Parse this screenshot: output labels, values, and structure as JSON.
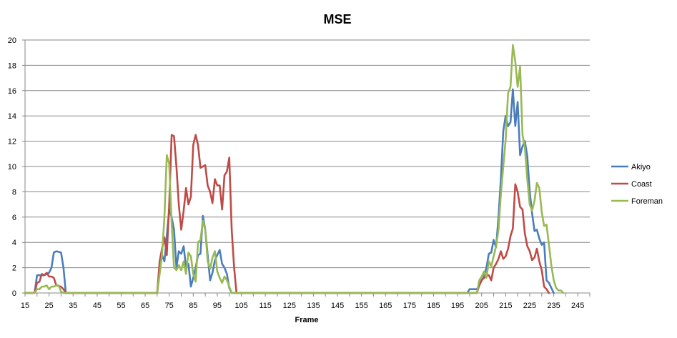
{
  "chart_data": {
    "type": "line",
    "title": "MSE",
    "xlabel": "Frame",
    "ylabel": "",
    "xlim": [
      15,
      250
    ],
    "ylim": [
      0,
      20
    ],
    "x_ticks": [
      15,
      25,
      35,
      45,
      55,
      65,
      75,
      85,
      95,
      105,
      115,
      125,
      135,
      145,
      155,
      165,
      175,
      185,
      195,
      205,
      215,
      225,
      235,
      245
    ],
    "y_ticks": [
      0,
      2,
      4,
      6,
      8,
      10,
      12,
      14,
      16,
      18,
      20
    ],
    "grid": "horizontal",
    "legend_position": "right",
    "series": [
      {
        "name": "Akiyo",
        "color": "#4a7ebb",
        "points": [
          [
            15,
            0
          ],
          [
            19,
            0
          ],
          [
            20,
            1.4
          ],
          [
            23,
            1.4
          ],
          [
            25,
            1.6
          ],
          [
            26,
            2
          ],
          [
            27,
            3.2
          ],
          [
            28,
            3.3
          ],
          [
            30,
            3.2
          ],
          [
            31,
            2
          ],
          [
            32,
            0
          ],
          [
            70,
            0
          ],
          [
            71,
            2
          ],
          [
            72,
            3
          ],
          [
            73,
            2.5
          ],
          [
            74,
            4.5
          ],
          [
            75,
            6.6
          ],
          [
            76,
            6
          ],
          [
            77,
            5
          ],
          [
            78,
            2
          ],
          [
            79,
            3.3
          ],
          [
            80,
            3.1
          ],
          [
            81,
            3.7
          ],
          [
            82,
            2
          ],
          [
            83,
            2.3
          ],
          [
            84,
            0.5
          ],
          [
            85,
            1.2
          ],
          [
            86,
            2
          ],
          [
            87,
            3
          ],
          [
            88,
            3.1
          ],
          [
            89,
            6.1
          ],
          [
            90,
            5
          ],
          [
            91,
            3
          ],
          [
            92,
            1
          ],
          [
            93,
            1.6
          ],
          [
            94,
            2.6
          ],
          [
            95,
            3
          ],
          [
            96,
            3.4
          ],
          [
            97,
            2.3
          ],
          [
            98,
            2
          ],
          [
            99,
            1.5
          ],
          [
            100,
            0.4
          ],
          [
            101,
            0
          ],
          [
            199,
            0
          ],
          [
            200,
            0.3
          ],
          [
            201,
            0.3
          ],
          [
            203,
            0.3
          ],
          [
            204,
            0.6
          ],
          [
            205,
            1
          ],
          [
            206,
            1.3
          ],
          [
            207,
            2
          ],
          [
            208,
            3.1
          ],
          [
            209,
            3.2
          ],
          [
            210,
            4.2
          ],
          [
            211,
            3.6
          ],
          [
            212,
            6
          ],
          [
            213,
            9
          ],
          [
            214,
            12.8
          ],
          [
            215,
            14
          ],
          [
            216,
            13.2
          ],
          [
            217,
            13.5
          ],
          [
            218,
            16.1
          ],
          [
            219,
            13.2
          ],
          [
            220,
            15.1
          ],
          [
            221,
            10.9
          ],
          [
            222,
            11.6
          ],
          [
            223,
            12
          ],
          [
            224,
            10.8
          ],
          [
            225,
            8
          ],
          [
            226,
            6.3
          ],
          [
            227,
            4.9
          ],
          [
            228,
            5
          ],
          [
            229,
            4.3
          ],
          [
            230,
            3.8
          ],
          [
            231,
            4
          ],
          [
            232,
            1
          ],
          [
            233,
            0.8
          ],
          [
            234,
            0.4
          ],
          [
            235,
            0
          ]
        ]
      },
      {
        "name": "Coast",
        "color": "#be4b48",
        "points": [
          [
            15,
            0
          ],
          [
            19,
            0
          ],
          [
            20,
            0.8
          ],
          [
            21,
            0.9
          ],
          [
            22,
            1.5
          ],
          [
            23,
            1.4
          ],
          [
            24,
            1.6
          ],
          [
            25,
            1.3
          ],
          [
            26,
            1.3
          ],
          [
            27,
            1.2
          ],
          [
            28,
            0.6
          ],
          [
            30,
            0.5
          ],
          [
            31,
            0.3
          ],
          [
            32,
            0
          ],
          [
            70,
            0
          ],
          [
            71,
            2.5
          ],
          [
            72,
            3.5
          ],
          [
            73,
            4.4
          ],
          [
            74,
            3
          ],
          [
            75,
            7
          ],
          [
            76,
            12.5
          ],
          [
            77,
            12.4
          ],
          [
            78,
            10
          ],
          [
            79,
            7
          ],
          [
            80,
            5
          ],
          [
            81,
            6.5
          ],
          [
            82,
            8.3
          ],
          [
            83,
            7
          ],
          [
            84,
            7.6
          ],
          [
            85,
            11.7
          ],
          [
            86,
            12.5
          ],
          [
            87,
            11.7
          ],
          [
            88,
            9.9
          ],
          [
            89,
            10
          ],
          [
            90,
            10.1
          ],
          [
            91,
            8.5
          ],
          [
            92,
            8
          ],
          [
            93,
            7.1
          ],
          [
            94,
            9
          ],
          [
            95,
            8.5
          ],
          [
            96,
            8.5
          ],
          [
            97,
            6.6
          ],
          [
            98,
            9.3
          ],
          [
            99,
            9.6
          ],
          [
            100,
            10.7
          ],
          [
            101,
            5
          ],
          [
            102,
            2
          ],
          [
            103,
            0
          ],
          [
            203,
            0
          ],
          [
            204,
            0.6
          ],
          [
            205,
            1
          ],
          [
            206,
            1.2
          ],
          [
            207,
            1.4
          ],
          [
            208,
            1.4
          ],
          [
            209,
            1
          ],
          [
            210,
            2
          ],
          [
            211,
            2.3
          ],
          [
            212,
            2.7
          ],
          [
            213,
            3.3
          ],
          [
            214,
            2.7
          ],
          [
            215,
            2.9
          ],
          [
            216,
            3.5
          ],
          [
            217,
            4.5
          ],
          [
            218,
            5.1
          ],
          [
            219,
            8.6
          ],
          [
            220,
            8
          ],
          [
            221,
            6.8
          ],
          [
            222,
            6.6
          ],
          [
            223,
            4.7
          ],
          [
            224,
            3.7
          ],
          [
            225,
            3.3
          ],
          [
            226,
            2.6
          ],
          [
            227,
            2.8
          ],
          [
            228,
            3.5
          ],
          [
            229,
            2.5
          ],
          [
            230,
            1.8
          ],
          [
            231,
            0.5
          ],
          [
            232,
            0.3
          ],
          [
            233,
            0
          ]
        ]
      },
      {
        "name": "Foreman",
        "color": "#98b954",
        "points": [
          [
            15,
            0
          ],
          [
            19,
            0
          ],
          [
            20,
            0.3
          ],
          [
            21,
            0.3
          ],
          [
            22,
            0.5
          ],
          [
            23,
            0.5
          ],
          [
            24,
            0.6
          ],
          [
            25,
            0.3
          ],
          [
            26,
            0.5
          ],
          [
            27,
            0.5
          ],
          [
            28,
            0.6
          ],
          [
            29,
            0.6
          ],
          [
            30,
            0.1
          ],
          [
            31,
            0
          ],
          [
            70,
            0
          ],
          [
            71,
            1.5
          ],
          [
            72,
            3
          ],
          [
            73,
            6
          ],
          [
            74,
            10.9
          ],
          [
            75,
            10.2
          ],
          [
            76,
            5.5
          ],
          [
            77,
            2
          ],
          [
            78,
            1.8
          ],
          [
            79,
            2.2
          ],
          [
            80,
            1.8
          ],
          [
            81,
            2.5
          ],
          [
            82,
            1.5
          ],
          [
            83,
            3.2
          ],
          [
            84,
            2.9
          ],
          [
            85,
            1.5
          ],
          [
            86,
            0.9
          ],
          [
            87,
            4
          ],
          [
            88,
            4.2
          ],
          [
            89,
            5.7
          ],
          [
            90,
            5
          ],
          [
            91,
            2.5
          ],
          [
            92,
            1.9
          ],
          [
            93,
            2.8
          ],
          [
            94,
            3.3
          ],
          [
            95,
            1.7
          ],
          [
            96,
            1.2
          ],
          [
            97,
            0.8
          ],
          [
            98,
            1.3
          ],
          [
            99,
            1
          ],
          [
            100,
            0.5
          ],
          [
            101,
            0
          ],
          [
            203,
            0
          ],
          [
            204,
            1
          ],
          [
            205,
            1.3
          ],
          [
            206,
            1.7
          ],
          [
            207,
            1.2
          ],
          [
            208,
            2.5
          ],
          [
            209,
            2.1
          ],
          [
            210,
            2.9
          ],
          [
            211,
            3.7
          ],
          [
            212,
            5
          ],
          [
            213,
            7.8
          ],
          [
            214,
            10
          ],
          [
            215,
            12.1
          ],
          [
            216,
            15.8
          ],
          [
            217,
            16.3
          ],
          [
            218,
            19.6
          ],
          [
            219,
            18.3
          ],
          [
            220,
            16.3
          ],
          [
            221,
            17.9
          ],
          [
            222,
            12.5
          ],
          [
            223,
            11.5
          ],
          [
            224,
            9
          ],
          [
            225,
            7
          ],
          [
            226,
            6.5
          ],
          [
            227,
            7.3
          ],
          [
            228,
            8.7
          ],
          [
            229,
            8.3
          ],
          [
            230,
            6.4
          ],
          [
            231,
            5.3
          ],
          [
            232,
            5.4
          ],
          [
            233,
            3.8
          ],
          [
            234,
            2.2
          ],
          [
            235,
            1
          ],
          [
            236,
            0.4
          ],
          [
            237,
            0.2
          ],
          [
            238,
            0.2
          ],
          [
            239,
            0
          ]
        ]
      }
    ]
  }
}
